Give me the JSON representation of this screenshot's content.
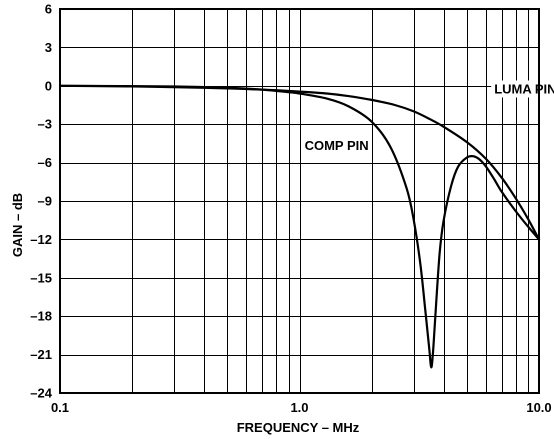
{
  "chart_data": {
    "type": "line",
    "xlabel": "FREQUENCY – MHz",
    "ylabel": "GAIN – dB",
    "x_scale": "log",
    "xlim": [
      0.1,
      10.0
    ],
    "ylim": [
      -24,
      6
    ],
    "grid": true,
    "x_ticks": [
      {
        "value": 0.1,
        "label": "0.1"
      },
      {
        "value": 1.0,
        "label": "1.0"
      },
      {
        "value": 10.0,
        "label": "10.0"
      }
    ],
    "y_ticks": [
      {
        "value": 6,
        "label": "6"
      },
      {
        "value": 3,
        "label": "3"
      },
      {
        "value": 0,
        "label": "0"
      },
      {
        "value": -3,
        "label": "–3"
      },
      {
        "value": -6,
        "label": "–6"
      },
      {
        "value": -9,
        "label": "–9"
      },
      {
        "value": -12,
        "label": "–12"
      },
      {
        "value": -15,
        "label": "–15"
      },
      {
        "value": -18,
        "label": "–18"
      },
      {
        "value": -21,
        "label": "–21"
      },
      {
        "value": -24,
        "label": "–24"
      }
    ],
    "series": [
      {
        "name": "LUMA PIN",
        "label_at": [
          6.5,
          -0.6
        ],
        "x": [
          0.1,
          0.2,
          0.4,
          0.6,
          0.8,
          1.0,
          1.3,
          1.6,
          2.0,
          2.5,
          3.0,
          3.5,
          4.0,
          5.0,
          6.0,
          7.0,
          8.0,
          9.0,
          10.0
        ],
        "y": [
          0.0,
          -0.05,
          -0.15,
          -0.25,
          -0.35,
          -0.45,
          -0.6,
          -0.8,
          -1.1,
          -1.5,
          -2.0,
          -2.6,
          -3.2,
          -4.4,
          -5.7,
          -7.2,
          -8.8,
          -10.4,
          -12.0
        ]
      },
      {
        "name": "COMP PIN",
        "label_at": [
          1.05,
          -5.0
        ],
        "x": [
          0.1,
          0.3,
          0.5,
          0.7,
          0.9,
          1.0,
          1.3,
          1.6,
          2.0,
          2.4,
          2.8,
          3.0,
          3.2,
          3.35,
          3.48,
          3.55,
          3.62,
          3.72,
          3.85,
          4.0,
          4.3,
          4.6,
          5.0,
          5.3,
          5.6,
          6.0,
          6.5,
          7.0,
          8.0,
          9.0,
          10.0
        ],
        "y": [
          0.0,
          -0.05,
          -0.15,
          -0.3,
          -0.5,
          -0.6,
          -1.0,
          -1.6,
          -2.8,
          -4.8,
          -8.0,
          -10.5,
          -14.0,
          -17.5,
          -20.5,
          -22.0,
          -20.5,
          -17.0,
          -13.0,
          -10.5,
          -7.8,
          -6.3,
          -5.6,
          -5.5,
          -5.7,
          -6.3,
          -7.3,
          -8.3,
          -9.8,
          -11.0,
          -12.0
        ]
      }
    ]
  }
}
